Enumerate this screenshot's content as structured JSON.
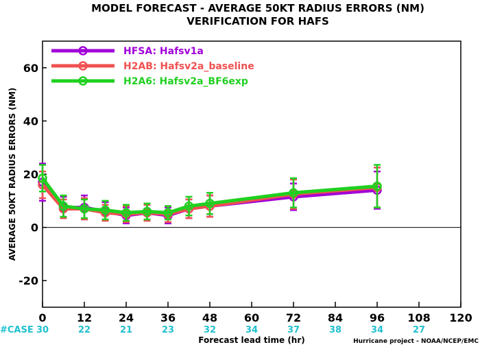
{
  "chart_data": {
    "type": "line",
    "title": "MODEL FORECAST - AVERAGE 50KT RADIUS ERRORS (NM)",
    "subtitle": "VERIFICATION FOR HAFS",
    "xlabel": "Forecast lead time (hr)",
    "ylabel": "AVERAGE 50KT RADIUS ERRORS (NM)",
    "xlim": [
      0,
      120
    ],
    "ylim": [
      -30,
      70
    ],
    "xticks": [
      "0",
      "12",
      "24",
      "36",
      "48",
      "60",
      "72",
      "84",
      "96",
      "108",
      "120"
    ],
    "yticks": [
      "60",
      "40",
      "20",
      "0",
      "-20"
    ],
    "reference_line": 0,
    "legend_position": "top-left",
    "case_label": "#CASE",
    "case_color": "#20c0d0",
    "cases": [
      {
        "x": 0,
        "n": "30"
      },
      {
        "x": 12,
        "n": "22"
      },
      {
        "x": 24,
        "n": "21"
      },
      {
        "x": 36,
        "n": "23"
      },
      {
        "x": 48,
        "n": "32"
      },
      {
        "x": 60,
        "n": "34"
      },
      {
        "x": 72,
        "n": "37"
      },
      {
        "x": 84,
        "n": "38"
      },
      {
        "x": 96,
        "n": "34"
      },
      {
        "x": 108,
        "n": "27"
      }
    ],
    "x": [
      0,
      6,
      12,
      18,
      24,
      30,
      36,
      42,
      48,
      72,
      96
    ],
    "series": [
      {
        "name": "HFSA: Hafsv1a",
        "color": "#a000d8",
        "values": [
          17,
          7.5,
          7.5,
          6,
          4.5,
          5.5,
          4.5,
          7,
          8,
          11.5,
          14
        ],
        "errors": [
          7,
          4,
          4.5,
          3.5,
          3,
          3,
          3,
          3.5,
          4,
          5,
          7
        ]
      },
      {
        "name": "H2AB: Hafsv2a_baseline",
        "color": "#f05050",
        "values": [
          16,
          7,
          7,
          5.5,
          5,
          5.5,
          5,
          7,
          8,
          12.5,
          15
        ],
        "errors": [
          5,
          3.5,
          4,
          3,
          3,
          3,
          3,
          3.5,
          4,
          5.5,
          7.5
        ]
      },
      {
        "name": "H2A6: Hafsv2a_BF6exp",
        "color": "#20d020",
        "values": [
          18.5,
          8,
          7,
          6.5,
          5.5,
          6,
          5.5,
          8,
          9,
          13,
          15.5
        ],
        "errors": [
          5,
          4,
          3.5,
          3.5,
          3,
          3,
          2.5,
          3.5,
          4,
          5.5,
          8
        ]
      }
    ],
    "credit": "Hurricane project - NOAA/NCEP/EMC"
  }
}
